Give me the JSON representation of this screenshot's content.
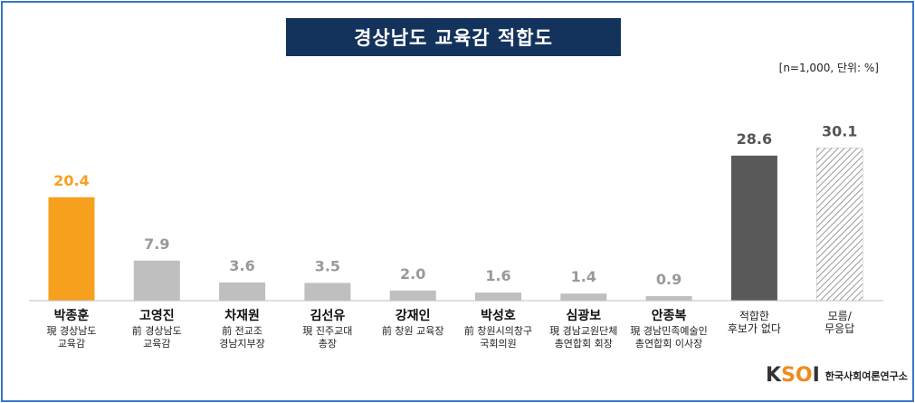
{
  "title": "경상남도 교육감 적합도",
  "unit_note": "[n=1,000,  단위: %]",
  "logo": {
    "mark_k": "K",
    "mark_so": "SO",
    "mark_i": "I",
    "name": "한국사회여론연구소"
  },
  "colors": {
    "highlight": "#f7a01e",
    "normal": "#bfbfbf",
    "none": "#595959",
    "dontknow_stripe": "#999999",
    "title_bg": "#14335c",
    "frame": "#3a78c2"
  },
  "chart_data": {
    "type": "bar",
    "title": "경상남도 교육감 적합도",
    "ylim": [
      0,
      32
    ],
    "categories": [
      {
        "name": "박종훈",
        "sub": [
          "現 경상남도",
          "교육감"
        ]
      },
      {
        "name": "고영진",
        "sub": [
          "前 경상남도",
          "교육감"
        ]
      },
      {
        "name": "차재원",
        "sub": [
          "前 전교조",
          "경남지부장"
        ]
      },
      {
        "name": "김선유",
        "sub": [
          "現 진주교대",
          "총장"
        ]
      },
      {
        "name": "강재인",
        "sub": [
          "前 창원 교육장"
        ]
      },
      {
        "name": "박성호",
        "sub": [
          "前 창원시의창구",
          "국회의원"
        ]
      },
      {
        "name": "심광보",
        "sub": [
          "現 경남교원단체",
          "총연합회 회장"
        ]
      },
      {
        "name": "안종복",
        "sub": [
          "現 경남민족예술인",
          "총연합회 이사장"
        ]
      },
      {
        "name": "",
        "sub": [
          "적합한",
          "후보가  없다"
        ]
      },
      {
        "name": "",
        "sub": [
          "모름/",
          "무응답"
        ]
      }
    ],
    "values": [
      20.4,
      7.9,
      3.6,
      3.5,
      2.0,
      1.6,
      1.4,
      0.9,
      28.6,
      30.1
    ],
    "value_labels": [
      "20.4",
      "7.9",
      "3.6",
      "3.5",
      "2.0",
      "1.6",
      "1.4",
      "0.9",
      "28.6",
      "30.1"
    ],
    "bar_styles": [
      "highlight",
      "normal",
      "normal",
      "normal",
      "normal",
      "normal",
      "normal",
      "normal",
      "none",
      "dontknow"
    ]
  }
}
